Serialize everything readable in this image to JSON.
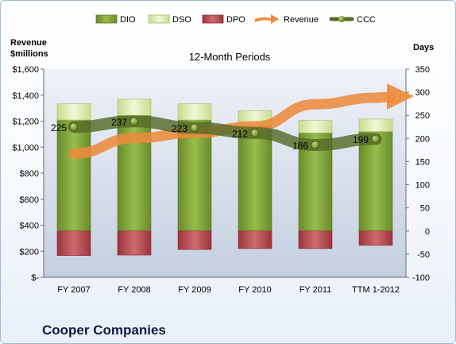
{
  "chart_data": {
    "type": "bar",
    "title": "12-Month Periods",
    "company": "Cooper Companies",
    "categories": [
      "FY 2007",
      "FY 2008",
      "FY 2009",
      "FY 2010",
      "FY 2011",
      "TTM 1-2012"
    ],
    "left_axis": {
      "label_line1": "Revenue",
      "label_line2": "$millions",
      "ylim": [
        0,
        1600
      ],
      "ticks": [
        0,
        200,
        400,
        600,
        800,
        1000,
        1200,
        1400,
        1600
      ],
      "tick_labels": [
        "$-",
        "$200",
        "$400",
        "$600",
        "$800",
        "$1,000",
        "$1,200",
        "$1,400",
        "$1,600"
      ]
    },
    "right_axis": {
      "label": "Days",
      "ylim": [
        -100,
        350
      ],
      "ticks": [
        -100,
        -50,
        0,
        50,
        100,
        150,
        200,
        250,
        300,
        350
      ],
      "tick_labels": [
        "-100",
        "-50",
        "0",
        "50",
        "100",
        "150",
        "200",
        "250",
        "300",
        "350"
      ]
    },
    "series": [
      {
        "name": "DIO",
        "axis": "right",
        "kind": "stacked-bar",
        "color": "#7fa33a",
        "values": [
          240,
          250,
          240,
          228,
          212,
          215
        ]
      },
      {
        "name": "DSO",
        "axis": "right",
        "kind": "stacked-bar",
        "color": "#e0eeb8",
        "values": [
          35,
          35,
          35,
          32,
          27,
          27
        ]
      },
      {
        "name": "DPO",
        "axis": "right",
        "kind": "negative-bar",
        "color": "#b5474e",
        "values": [
          -53,
          -52,
          -40,
          -38,
          -38,
          -31
        ]
      },
      {
        "name": "Revenue",
        "axis": "left",
        "kind": "arrow-trend",
        "color": "#ec8b3c",
        "values": [
          950,
          1070,
          1110,
          1160,
          1330,
          1380
        ]
      },
      {
        "name": "CCC",
        "axis": "right",
        "kind": "line-markers",
        "color": "#556b2a",
        "values": [
          225,
          237,
          223,
          212,
          186,
          199
        ],
        "data_labels": [
          "225",
          "237",
          "223",
          "212",
          "186",
          "199"
        ]
      }
    ],
    "grid": false,
    "legend_position": "top"
  }
}
